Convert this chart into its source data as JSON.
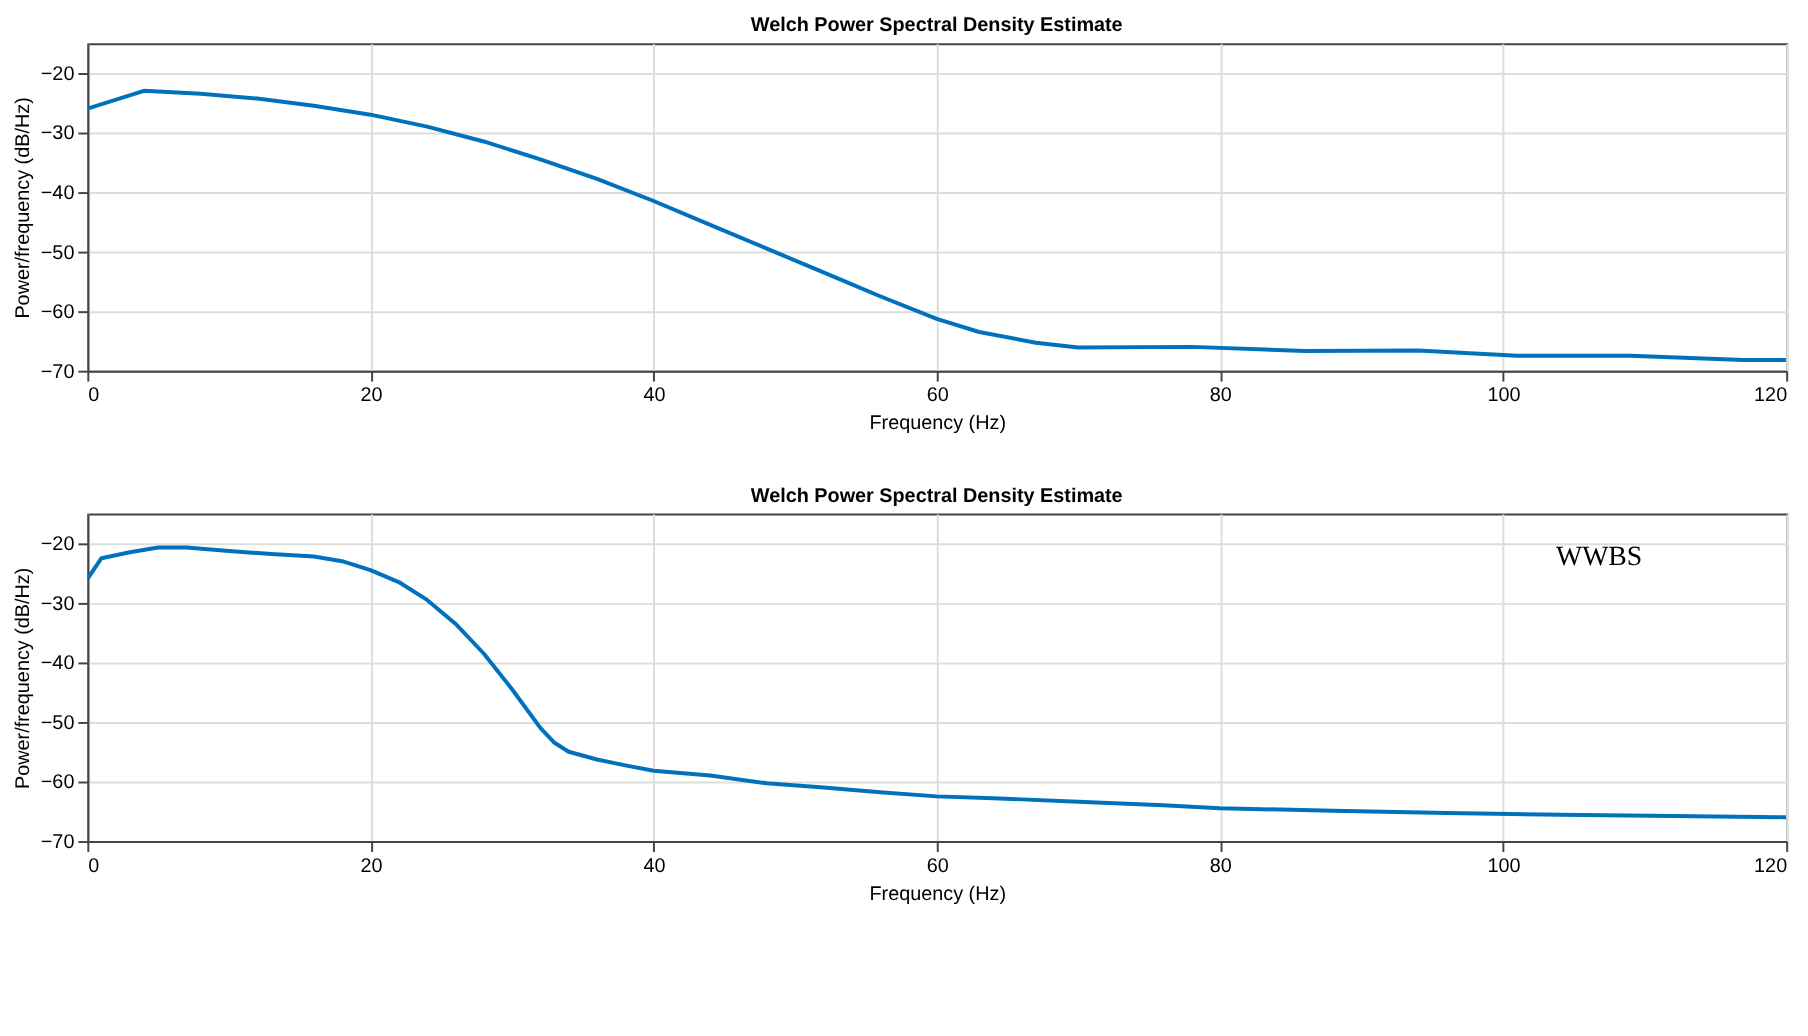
{
  "chart_data": [
    {
      "type": "line",
      "title": "Welch Power Spectral Density Estimate",
      "xlabel": "Frequency (Hz)",
      "ylabel": "Power/frequency (dB/Hz)",
      "xlim": [
        0,
        120
      ],
      "xticks": [
        0,
        20,
        40,
        60,
        80,
        100,
        120
      ],
      "ylim": [
        -70,
        -15
      ],
      "yticks": [
        -70,
        -60,
        -50,
        -40,
        -30,
        -20
      ],
      "grid": true,
      "series": [
        {
          "color": "#0072bd",
          "x": [
            0,
            4,
            8,
            12,
            16,
            20,
            24,
            28,
            32,
            36,
            40,
            44,
            48,
            52,
            56,
            60,
            63,
            67,
            70,
            78,
            86,
            94,
            101,
            109,
            117,
            120
          ],
          "values": [
            -26,
            -23,
            -23.5,
            -24.3,
            -25.5,
            -27,
            -29,
            -31.5,
            -34.5,
            -37.8,
            -41.5,
            -45.5,
            -49.5,
            -53.5,
            -57.5,
            -61.3,
            -63.5,
            -65.3,
            -66.1,
            -66,
            -66.7,
            -66.6,
            -67.5,
            -67.5,
            -68.2,
            -68.2
          ]
        }
      ]
    },
    {
      "type": "line",
      "title": "Welch Power Spectral Density Estimate",
      "xlabel": "Frequency (Hz)",
      "ylabel": "Power/frequency (dB/Hz)",
      "xlim": [
        0,
        120
      ],
      "xticks": [
        0,
        20,
        40,
        60,
        80,
        100,
        120
      ],
      "ylim": [
        -70,
        -15
      ],
      "yticks": [
        -70,
        -60,
        -50,
        -40,
        -30,
        -20
      ],
      "grid": true,
      "annotations": [
        "WWBS"
      ],
      "series": [
        {
          "color": "#0072bd",
          "x": [
            0,
            1,
            3,
            5,
            7,
            10,
            13,
            16,
            18,
            20,
            22,
            24,
            26,
            28,
            30,
            32,
            33,
            34,
            36,
            38,
            40,
            44,
            48,
            52,
            56,
            60,
            64,
            70,
            76,
            80,
            88,
            96,
            104,
            112,
            120
          ],
          "values": [
            -26,
            -22.5,
            -21.5,
            -20.7,
            -20.7,
            -21.3,
            -21.8,
            -22.2,
            -23,
            -24.5,
            -26.5,
            -29.5,
            -33.5,
            -38.5,
            -44.5,
            -51,
            -53.5,
            -55,
            -56.3,
            -57.3,
            -58.2,
            -59,
            -60.3,
            -61,
            -61.8,
            -62.5,
            -62.8,
            -63.4,
            -64,
            -64.5,
            -64.9,
            -65.3,
            -65.6,
            -65.8,
            -66
          ]
        }
      ]
    }
  ]
}
